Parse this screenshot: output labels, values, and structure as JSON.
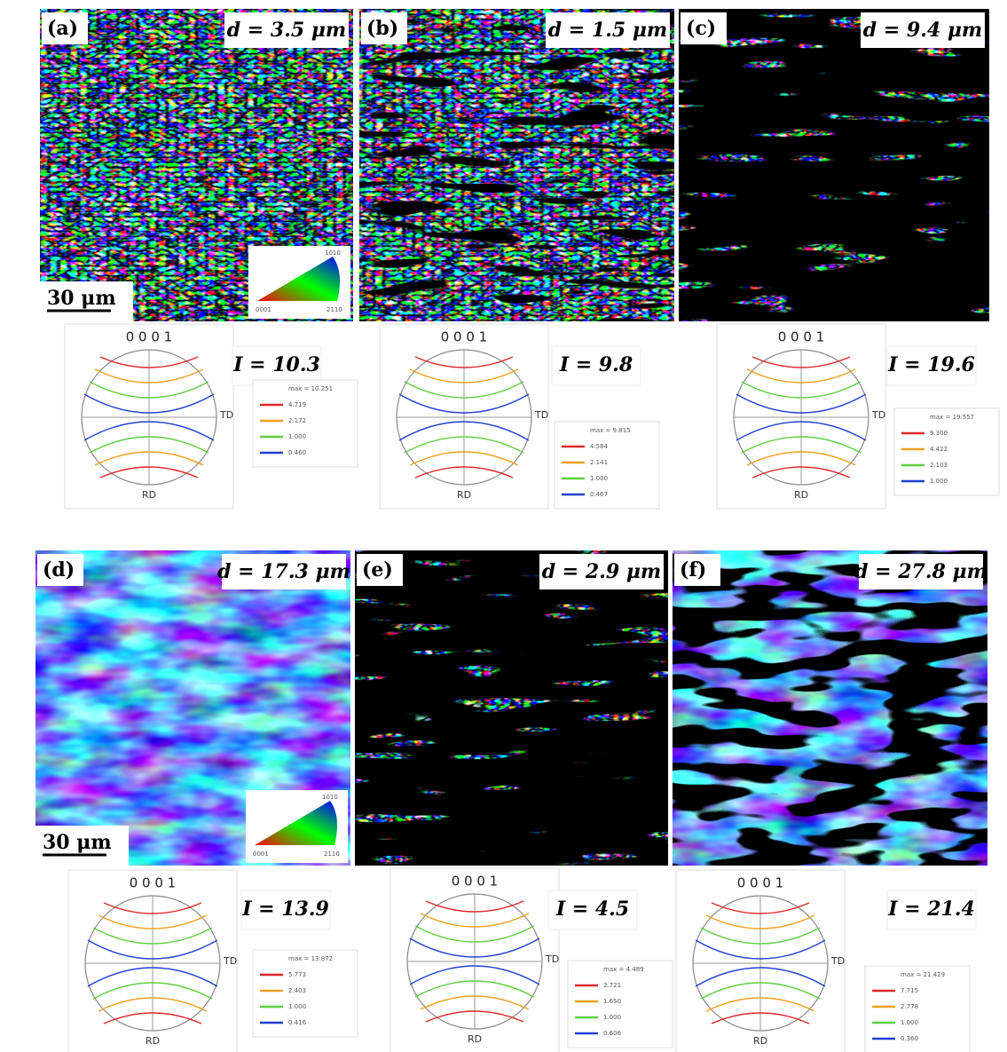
{
  "level_colors": [
    "#e02828",
    "#f0a020",
    "#5fd040",
    "#2040d0"
  ],
  "panels": [
    {
      "label": "(a)",
      "grain_size": "d = 3.5 μm",
      "scale_bar": "30 μm",
      "ipf_key": [
        "0001",
        "2110",
        "1010"
      ],
      "pole_figure": {
        "title": "0 0 0 1",
        "td": "TD",
        "rd": "RD",
        "intensity": "I = 10.3",
        "max": "max = 10.251",
        "levels": [
          "4.719",
          "2.172",
          "1.000",
          "0.460"
        ]
      }
    },
    {
      "label": "(b)",
      "grain_size": "d = 1.5 μm",
      "pole_figure": {
        "title": "0 0 0 1",
        "td": "TD",
        "rd": "RD",
        "intensity": "I = 9.8",
        "max": "max = 9.815",
        "levels": [
          "4.584",
          "2.141",
          "1.000",
          "0.467"
        ]
      }
    },
    {
      "label": "(c)",
      "grain_size": "d = 9.4 μm",
      "pole_figure": {
        "title": "0 0 0 1",
        "td": "TD",
        "rd": "RD",
        "intensity": "I = 19.6",
        "max": "max = 19.557",
        "levels": [
          "9.300",
          "4.422",
          "2.103",
          "1.000"
        ]
      }
    },
    {
      "label": "(d)",
      "grain_size": "d = 17.3 μm",
      "scale_bar": "30 μm",
      "ipf_key": [
        "0001",
        "2110",
        "1010"
      ],
      "pole_figure": {
        "title": "0 0 0 1",
        "td": "TD",
        "rd": "RD",
        "intensity": "I = 13.9",
        "max": "max = 13.872",
        "levels": [
          "5.773",
          "2.403",
          "1.000",
          "0.416"
        ]
      }
    },
    {
      "label": "(e)",
      "grain_size": "d = 2.9 μm",
      "pole_figure": {
        "title": "0 0 0 1",
        "td": "TD",
        "rd": "RD",
        "intensity": "I = 4.5",
        "max": "max = 4.489",
        "levels": [
          "2.721",
          "1.650",
          "1.000",
          "0.606"
        ]
      }
    },
    {
      "label": "(f)",
      "grain_size": "d = 27.8 μm",
      "pole_figure": {
        "title": "0 0 0 1",
        "td": "TD",
        "rd": "RD",
        "intensity": "I = 21.4",
        "max": "max = 21.429",
        "levels": [
          "7.715",
          "2.778",
          "1.000",
          "0.360"
        ]
      }
    }
  ]
}
